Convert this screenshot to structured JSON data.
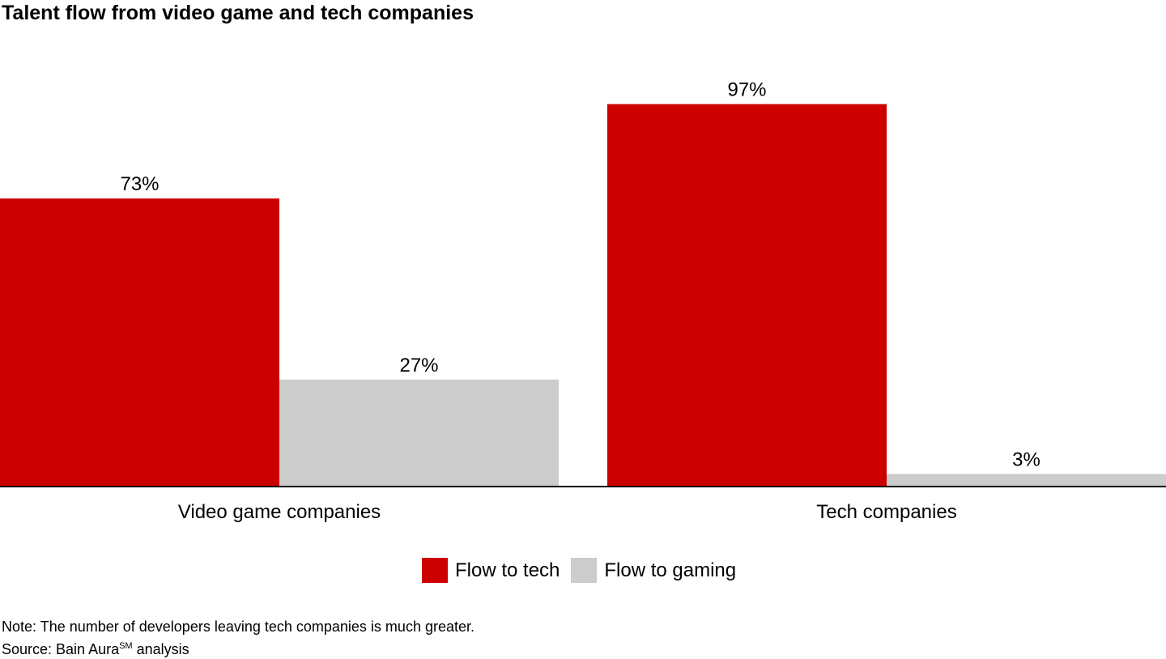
{
  "chart_data": {
    "type": "bar",
    "title": "Talent flow from video game and tech companies",
    "categories": [
      "Video game companies",
      "Tech companies"
    ],
    "series": [
      {
        "name": "Flow to tech",
        "values": [
          73,
          97
        ],
        "color": "#cc0000"
      },
      {
        "name": "Flow to gaming",
        "values": [
          27,
          3
        ],
        "color": "#cccccc"
      }
    ],
    "value_format": "percent",
    "ylim": [
      0,
      100
    ],
    "grid": false,
    "legend_position": "bottom"
  },
  "notes": {
    "note": "Note: The number of developers leaving tech companies is much greater.",
    "source_prefix": "Source: Bain Aura",
    "source_sup": "SM",
    "source_suffix": " analysis"
  }
}
